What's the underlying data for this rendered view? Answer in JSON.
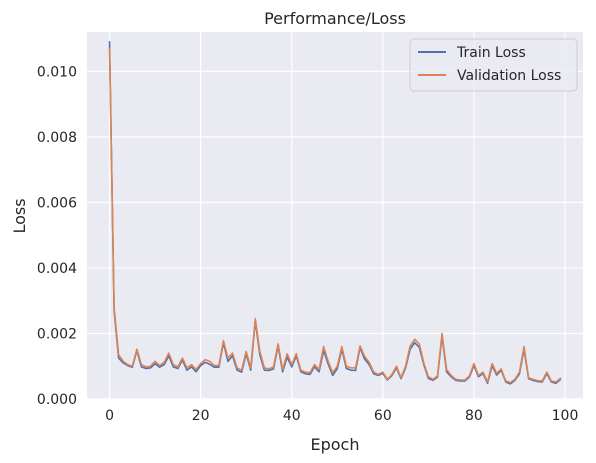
{
  "chart_data": {
    "type": "line",
    "title": "Performance/Loss",
    "xlabel": "Epoch",
    "ylabel": "Loss",
    "xlim": [
      -4.95,
      103.95
    ],
    "ylim": [
      0.0,
      0.0112
    ],
    "xticks": [
      0,
      20,
      40,
      60,
      80,
      100
    ],
    "xtick_labels": [
      "0",
      "20",
      "40",
      "60",
      "80",
      "100"
    ],
    "yticks": [
      0.0,
      0.002,
      0.004,
      0.006,
      0.008,
      0.01
    ],
    "ytick_labels": [
      "0.000",
      "0.002",
      "0.004",
      "0.006",
      "0.008",
      "0.010"
    ],
    "grid": true,
    "legend": "top-right",
    "series": [
      {
        "name": "Train Loss",
        "color": "#4c72b0",
        "values": [
          0.0109,
          0.0027,
          0.00125,
          0.0011,
          0.00102,
          0.00097,
          0.00148,
          0.00098,
          0.00093,
          0.00095,
          0.00108,
          0.00097,
          0.00105,
          0.00132,
          0.00098,
          0.00093,
          0.00119,
          0.00088,
          0.00098,
          0.00083,
          0.00102,
          0.00112,
          0.00106,
          0.00097,
          0.00097,
          0.00172,
          0.00115,
          0.00132,
          0.00088,
          0.00082,
          0.00138,
          0.00088,
          0.00238,
          0.00135,
          0.00088,
          0.00087,
          0.00092,
          0.00162,
          0.00083,
          0.00128,
          0.00098,
          0.00132,
          0.00083,
          0.00077,
          0.00075,
          0.00098,
          0.00083,
          0.00148,
          0.00107,
          0.00072,
          0.00093,
          0.00152,
          0.00093,
          0.00088,
          0.00087,
          0.00157,
          0.00122,
          0.00105,
          0.00077,
          0.00072,
          0.00078,
          0.00058,
          0.00072,
          0.00095,
          0.00062,
          0.00095,
          0.00152,
          0.00172,
          0.00158,
          0.00105,
          0.00063,
          0.00057,
          0.00067,
          0.00192,
          0.00083,
          0.00068,
          0.00057,
          0.00055,
          0.00055,
          0.00067,
          0.00102,
          0.00068,
          0.00078,
          0.00048,
          0.00102,
          0.00073,
          0.00088,
          0.00052,
          0.00046,
          0.00057,
          0.00077,
          0.00152,
          0.00062,
          0.00057,
          0.00053,
          0.00052,
          0.00078,
          0.00052,
          0.00048,
          0.0006
        ]
      },
      {
        "name": "Validation Loss",
        "color": "#dd8452",
        "values": [
          0.0107,
          0.0028,
          0.00135,
          0.00115,
          0.00105,
          0.001,
          0.00152,
          0.00105,
          0.00098,
          0.001,
          0.00115,
          0.00102,
          0.00112,
          0.0014,
          0.00105,
          0.00098,
          0.00125,
          0.00095,
          0.00105,
          0.0009,
          0.00108,
          0.0012,
          0.00115,
          0.00102,
          0.00102,
          0.00178,
          0.00125,
          0.0014,
          0.00095,
          0.00088,
          0.00145,
          0.00095,
          0.00245,
          0.00145,
          0.00095,
          0.00092,
          0.00098,
          0.00168,
          0.0009,
          0.00138,
          0.00105,
          0.00138,
          0.00088,
          0.00082,
          0.0008,
          0.00105,
          0.0009,
          0.0016,
          0.00115,
          0.0008,
          0.001,
          0.0016,
          0.001,
          0.00095,
          0.00095,
          0.00162,
          0.0013,
          0.00112,
          0.00082,
          0.00075,
          0.00082,
          0.0006,
          0.00075,
          0.001,
          0.00065,
          0.001,
          0.00162,
          0.00182,
          0.00168,
          0.0011,
          0.00068,
          0.0006,
          0.0007,
          0.002,
          0.0009,
          0.00072,
          0.0006,
          0.00058,
          0.00058,
          0.0007,
          0.00108,
          0.00072,
          0.00082,
          0.00052,
          0.00108,
          0.00078,
          0.00092,
          0.00055,
          0.0005,
          0.0006,
          0.00082,
          0.0016,
          0.00065,
          0.0006,
          0.00056,
          0.00055,
          0.00082,
          0.00055,
          0.00052,
          0.00063
        ]
      }
    ]
  }
}
